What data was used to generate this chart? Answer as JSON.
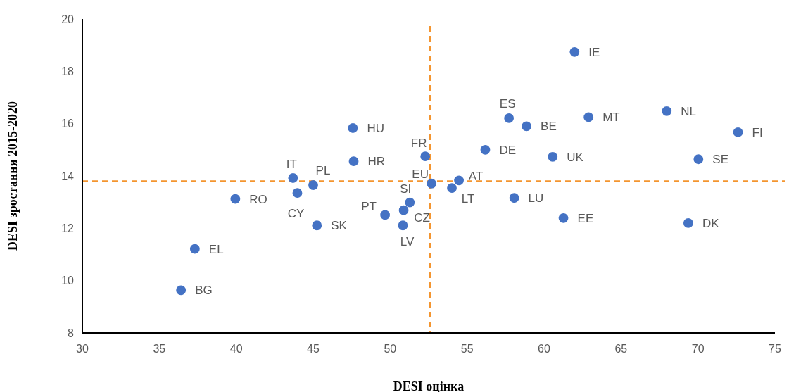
{
  "chart_data": {
    "type": "scatter",
    "xlabel": "DESI оцінка",
    "ylabel": "DESI зростання 2015-2020",
    "xlim": [
      30,
      75
    ],
    "ylim": [
      8,
      20
    ],
    "xticks": [
      30,
      35,
      40,
      45,
      50,
      55,
      60,
      65,
      70,
      75
    ],
    "yticks": [
      8,
      10,
      12,
      14,
      16,
      18,
      20
    ],
    "marker": "circle",
    "series": [
      {
        "color": "#4472c4",
        "x": [
          61.98,
          57.72,
          58.86,
          62.89,
          67.97,
          72.6,
          56.18,
          60.56,
          70.03,
          52.28,
          52.69,
          54.47,
          54.01,
          58.06,
          61.26,
          69.37,
          47.58,
          47.63,
          43.69,
          45.0,
          43.97,
          39.94,
          51.28,
          50.88,
          49.67,
          45.24,
          50.83,
          37.31,
          36.41
        ],
        "values": [
          18.74,
          16.21,
          15.9,
          16.25,
          16.48,
          15.67,
          15.0,
          14.73,
          14.64,
          14.75,
          13.71,
          13.83,
          13.54,
          13.16,
          12.39,
          12.2,
          15.83,
          14.56,
          13.92,
          13.65,
          13.35,
          13.12,
          12.99,
          12.69,
          12.51,
          12.11,
          12.11,
          11.21,
          9.63
        ]
      }
    ],
    "ref_lines": [
      {
        "axis": "x",
        "value": 52.6,
        "color": "#f4952f",
        "line_style": "dashed"
      },
      {
        "axis": "y",
        "value": 13.8,
        "color": "#f4952f",
        "line_style": "dashed"
      }
    ],
    "annotations": [
      {
        "text": "IE",
        "x": 61.98,
        "y": 18.74
      },
      {
        "text": "ES",
        "x": 57.72,
        "y": 16.21
      },
      {
        "text": "BE",
        "x": 58.86,
        "y": 15.9
      },
      {
        "text": "MT",
        "x": 62.89,
        "y": 16.25
      },
      {
        "text": "NL",
        "x": 67.97,
        "y": 16.48
      },
      {
        "text": "FI",
        "x": 72.6,
        "y": 15.67
      },
      {
        "text": "DE",
        "x": 56.18,
        "y": 15.0
      },
      {
        "text": "UK",
        "x": 60.56,
        "y": 14.73
      },
      {
        "text": "SE",
        "x": 70.03,
        "y": 14.64
      },
      {
        "text": "FR",
        "x": 52.28,
        "y": 14.75
      },
      {
        "text": "EU",
        "x": 52.69,
        "y": 13.71
      },
      {
        "text": "AT",
        "x": 54.47,
        "y": 13.83
      },
      {
        "text": "LT",
        "x": 54.01,
        "y": 13.54
      },
      {
        "text": "LU",
        "x": 58.06,
        "y": 13.16
      },
      {
        "text": "EE",
        "x": 61.26,
        "y": 12.39
      },
      {
        "text": "DK",
        "x": 69.37,
        "y": 12.2
      },
      {
        "text": "HU",
        "x": 47.58,
        "y": 15.83
      },
      {
        "text": "HR",
        "x": 47.63,
        "y": 14.56
      },
      {
        "text": "IT",
        "x": 43.69,
        "y": 13.92
      },
      {
        "text": "PL",
        "x": 45.0,
        "y": 13.65
      },
      {
        "text": "CY",
        "x": 43.97,
        "y": 13.35
      },
      {
        "text": "RO",
        "x": 39.94,
        "y": 13.12
      },
      {
        "text": "SI",
        "x": 51.28,
        "y": 12.99
      },
      {
        "text": "CZ",
        "x": 50.88,
        "y": 12.69
      },
      {
        "text": "PT",
        "x": 49.67,
        "y": 12.51
      },
      {
        "text": "SK",
        "x": 45.24,
        "y": 12.11
      },
      {
        "text": "LV",
        "x": 50.83,
        "y": 12.11
      },
      {
        "text": "EL",
        "x": 37.31,
        "y": 11.21
      },
      {
        "text": "BG",
        "x": 36.41,
        "y": 9.63
      }
    ]
  }
}
